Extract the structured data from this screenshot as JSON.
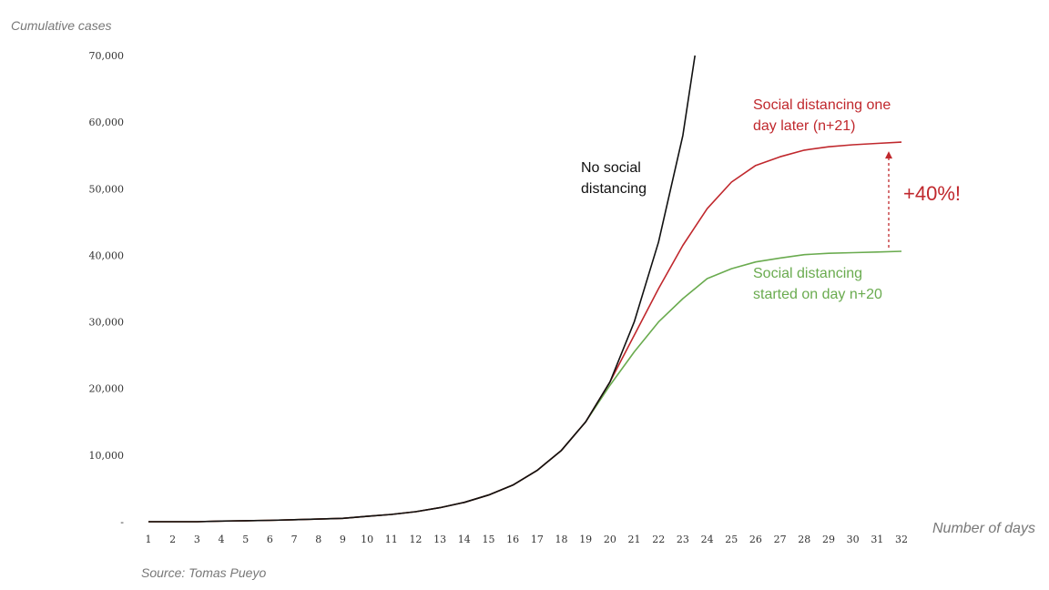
{
  "chart_data": {
    "type": "line",
    "ylabel": "Cumulative cases",
    "xlabel": "Number of days",
    "source": "Source: Tomas Pueyo",
    "x": [
      1,
      2,
      3,
      4,
      5,
      6,
      7,
      8,
      9,
      10,
      11,
      12,
      13,
      14,
      15,
      16,
      17,
      18,
      19,
      20,
      21,
      22,
      23,
      24,
      25,
      26,
      27,
      28,
      29,
      30,
      31,
      32
    ],
    "xlim": [
      1,
      32
    ],
    "ylim": [
      0,
      70000
    ],
    "y_ticks": [
      {
        "value": 0,
        "label": "-"
      },
      {
        "value": 10000,
        "label": "10,000"
      },
      {
        "value": 20000,
        "label": "20,000"
      },
      {
        "value": 30000,
        "label": "30,000"
      },
      {
        "value": 40000,
        "label": "40,000"
      },
      {
        "value": 50000,
        "label": "50,000"
      },
      {
        "value": 60000,
        "label": "60,000"
      },
      {
        "value": 70000,
        "label": "70,000"
      }
    ],
    "grid": false,
    "series": [
      {
        "name": "No social distancing",
        "color": "#111111",
        "x": [
          1,
          2,
          3,
          4,
          5,
          6,
          7,
          8,
          9,
          10,
          11,
          12,
          13,
          14,
          15,
          16,
          17,
          18,
          19,
          20,
          21,
          22,
          23,
          23.5
        ],
        "values": [
          0,
          0,
          0,
          100,
          150,
          200,
          300,
          400,
          500,
          800,
          1100,
          1500,
          2100,
          2900,
          4000,
          5500,
          7700,
          10700,
          15000,
          21000,
          30000,
          42000,
          58000,
          70000
        ]
      },
      {
        "name": "Social distancing one day later (n+21)",
        "color": "#c0282d",
        "x": [
          1,
          2,
          3,
          4,
          5,
          6,
          7,
          8,
          9,
          10,
          11,
          12,
          13,
          14,
          15,
          16,
          17,
          18,
          19,
          20,
          21,
          22,
          23,
          24,
          25,
          26,
          27,
          28,
          29,
          30,
          31,
          32
        ],
        "values": [
          0,
          0,
          0,
          100,
          150,
          200,
          300,
          400,
          500,
          800,
          1100,
          1500,
          2100,
          2900,
          4000,
          5500,
          7700,
          10700,
          15000,
          21000,
          28000,
          35000,
          41500,
          47000,
          51000,
          53500,
          54800,
          55800,
          56300,
          56600,
          56800,
          57000
        ]
      },
      {
        "name": "Social distancing started on day n+20",
        "color": "#6aab4f",
        "x": [
          1,
          2,
          3,
          4,
          5,
          6,
          7,
          8,
          9,
          10,
          11,
          12,
          13,
          14,
          15,
          16,
          17,
          18,
          19,
          20,
          21,
          22,
          23,
          24,
          25,
          26,
          27,
          28,
          29,
          30,
          31,
          32
        ],
        "values": [
          0,
          0,
          0,
          100,
          150,
          200,
          300,
          400,
          500,
          800,
          1100,
          1500,
          2100,
          2900,
          4000,
          5500,
          7700,
          10700,
          15000,
          20500,
          25500,
          30000,
          33500,
          36500,
          38000,
          39000,
          39600,
          40100,
          40300,
          40400,
          40500,
          40600
        ]
      }
    ],
    "annotations": [
      {
        "key": "black",
        "lines": [
          "No social",
          "distancing"
        ],
        "color": "#111111"
      },
      {
        "key": "red",
        "lines": [
          "Social distancing one",
          "day later (n+21)"
        ],
        "color": "#c0282d"
      },
      {
        "key": "green",
        "lines": [
          "Social distancing",
          "started on day n+20"
        ],
        "color": "#6aab4f"
      },
      {
        "key": "pct",
        "lines": [
          "+40%!"
        ],
        "color": "#c0282d"
      }
    ],
    "arrow": {
      "x": 32,
      "from": 40600,
      "to": 57000,
      "color": "#c0282d"
    }
  }
}
